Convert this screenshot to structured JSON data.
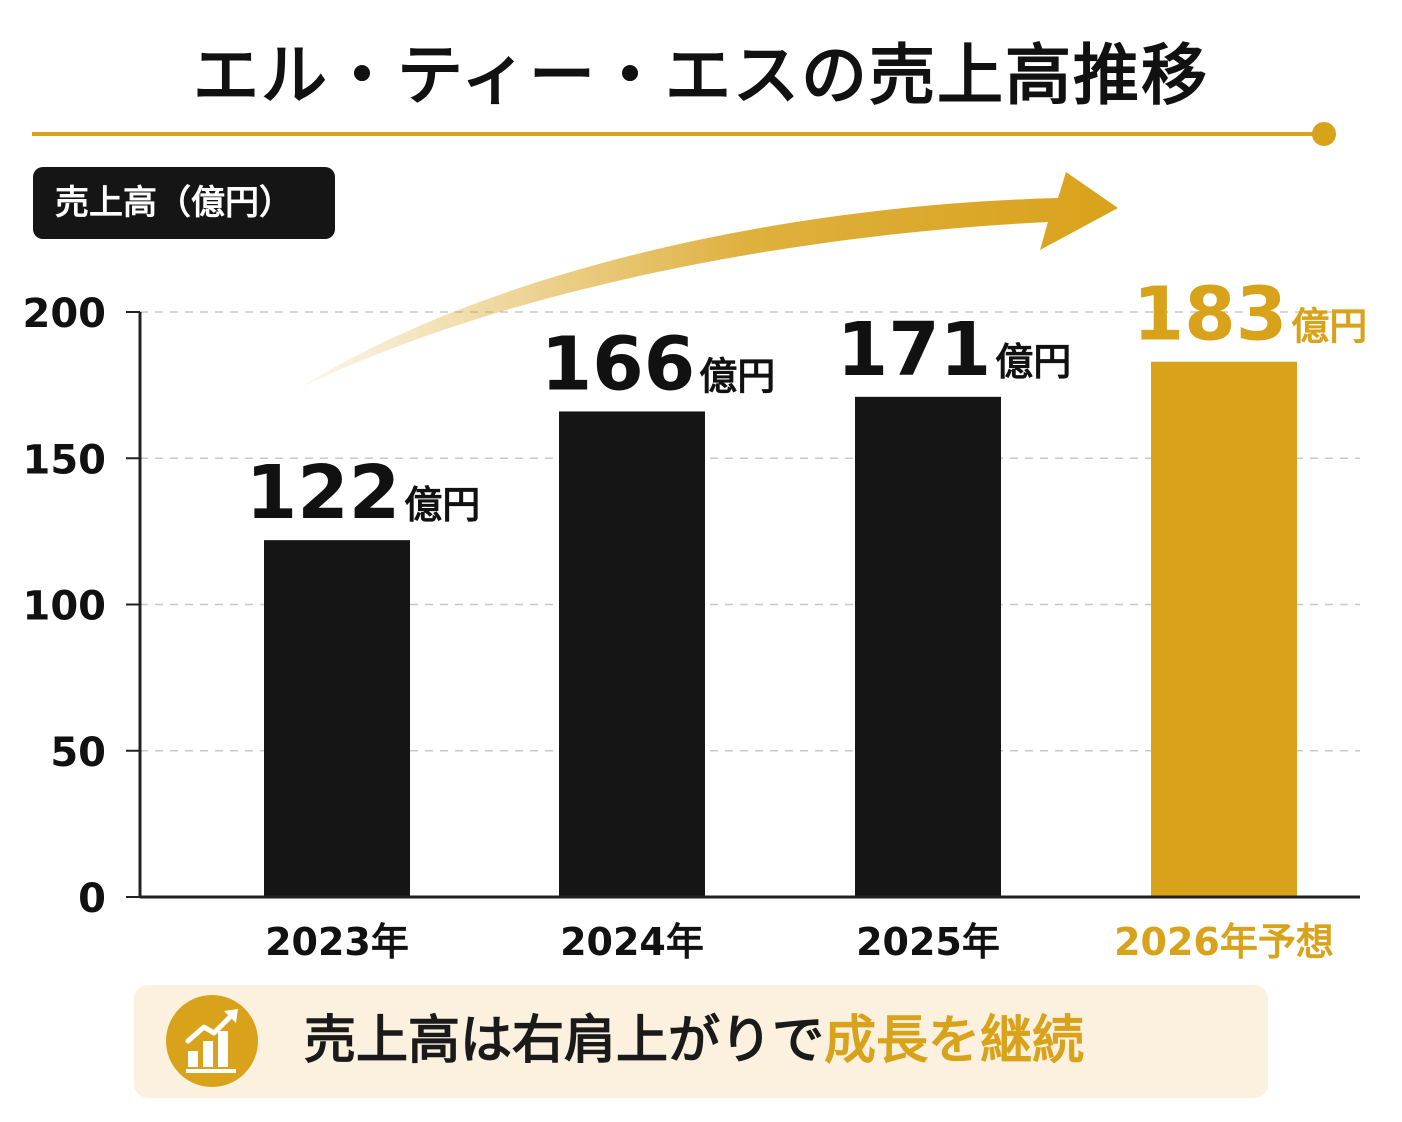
{
  "title": "エル・ティー・エスの売上高推移",
  "unit_badge": "売上高（億円）",
  "colors": {
    "accent": "#d9a21b",
    "bar_dark": "#151515",
    "text": "#111111"
  },
  "chart_data": {
    "type": "bar",
    "categories": [
      "2023年",
      "2024年",
      "2025年",
      "2026年予想"
    ],
    "values": [
      122,
      166,
      171,
      183
    ],
    "value_labels": [
      "122",
      "166",
      "171",
      "183"
    ],
    "value_unit": "億円",
    "highlighted_category": "2026年予想",
    "ylabel": "売上高（億円）",
    "ylim": [
      0,
      200
    ],
    "yticks": [
      0,
      50,
      100,
      150,
      200
    ],
    "grid": "horizontal dashed",
    "trend_arrow": true
  },
  "banner": {
    "text_main": "売上高は右肩上がりで",
    "text_accent": "成長を継続",
    "icon": "growth-chart-icon"
  }
}
